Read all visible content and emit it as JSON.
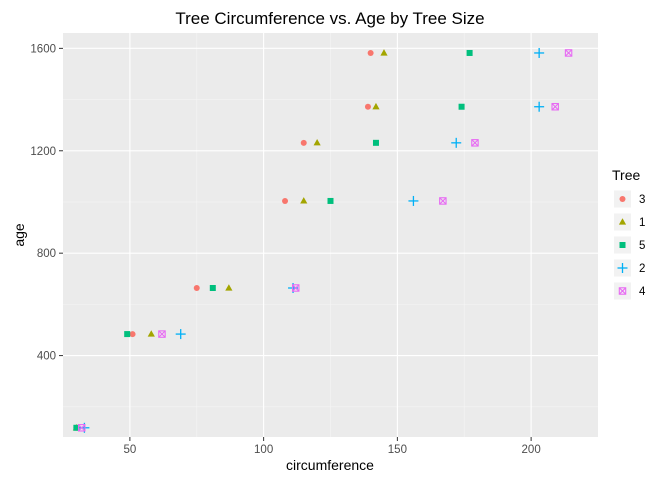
{
  "chart_data": {
    "type": "scatter",
    "title": "Tree Circumference vs. Age by Tree Size",
    "xlabel": "circumference",
    "ylabel": "age",
    "xlim": [
      25,
      225
    ],
    "ylim": [
      82,
      1660
    ],
    "xticks": [
      50,
      100,
      150,
      200
    ],
    "yticks": [
      400,
      800,
      1200,
      1600
    ],
    "grid": true,
    "legend": {
      "title": "Tree",
      "position": "right"
    },
    "series": [
      {
        "name": "3",
        "color": "#F8766D",
        "marker": "circle",
        "points": [
          [
            30,
            118
          ],
          [
            51,
            484
          ],
          [
            75,
            664
          ],
          [
            108,
            1004
          ],
          [
            115,
            1231
          ],
          [
            139,
            1372
          ],
          [
            140,
            1582
          ]
        ]
      },
      {
        "name": "1",
        "color": "#A3A500",
        "marker": "triangle",
        "points": [
          [
            30,
            118
          ],
          [
            58,
            484
          ],
          [
            87,
            664
          ],
          [
            115,
            1004
          ],
          [
            120,
            1231
          ],
          [
            142,
            1372
          ],
          [
            145,
            1582
          ]
        ]
      },
      {
        "name": "5",
        "color": "#00BF7D",
        "marker": "square",
        "points": [
          [
            30,
            118
          ],
          [
            49,
            484
          ],
          [
            81,
            664
          ],
          [
            125,
            1004
          ],
          [
            142,
            1231
          ],
          [
            174,
            1372
          ],
          [
            177,
            1582
          ]
        ]
      },
      {
        "name": "2",
        "color": "#00B0F6",
        "marker": "plus",
        "points": [
          [
            33,
            118
          ],
          [
            69,
            484
          ],
          [
            111,
            664
          ],
          [
            156,
            1004
          ],
          [
            172,
            1231
          ],
          [
            203,
            1372
          ],
          [
            203,
            1582
          ]
        ]
      },
      {
        "name": "4",
        "color": "#E76BF3",
        "marker": "square-x",
        "points": [
          [
            32,
            118
          ],
          [
            62,
            484
          ],
          [
            112,
            664
          ],
          [
            167,
            1004
          ],
          [
            179,
            1231
          ],
          [
            209,
            1372
          ],
          [
            214,
            1582
          ]
        ]
      }
    ]
  }
}
